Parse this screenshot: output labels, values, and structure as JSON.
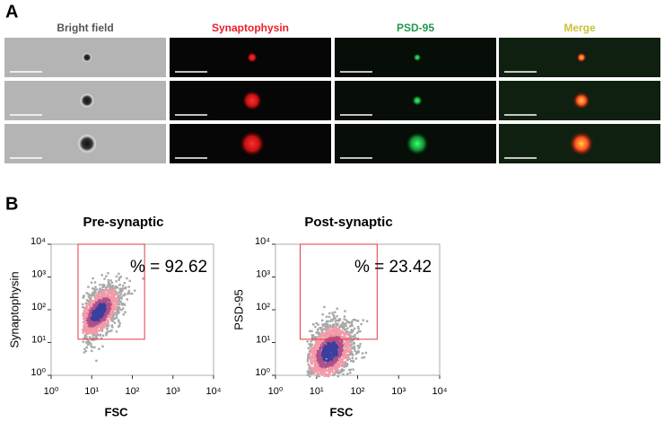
{
  "panel_a": {
    "label": "A",
    "columns": [
      {
        "text": "Bright field",
        "color": "#555555"
      },
      {
        "text": "Synaptophysin",
        "color": "#e8202a"
      },
      {
        "text": "PSD-95",
        "color": "#1e9a4a"
      },
      {
        "text": "Merge",
        "color": "#c9c23a"
      }
    ]
  },
  "panel_b": {
    "label": "B"
  },
  "chart_data": [
    {
      "type": "density",
      "title": "Pre-synaptic",
      "x_label": "FSC",
      "y_label": "Synaptophysin",
      "log_scale": true,
      "xlim": [
        1,
        10000
      ],
      "ylim": [
        1,
        10000
      ],
      "xticks": [
        {
          "value": 1,
          "label": "10⁰"
        },
        {
          "value": 10,
          "label": "10¹"
        },
        {
          "value": 100,
          "label": "10²"
        },
        {
          "value": 1000,
          "label": "10³"
        },
        {
          "value": 10000,
          "label": "10⁴"
        }
      ],
      "yticks": [
        {
          "value": 1,
          "label": "10⁰"
        },
        {
          "value": 10,
          "label": "10¹"
        },
        {
          "value": 100,
          "label": "10²"
        },
        {
          "value": 1000,
          "label": "10³"
        },
        {
          "value": 10000,
          "label": "10⁴"
        }
      ],
      "gate": {
        "x": [
          4.6,
          200
        ],
        "y": [
          12.6,
          10000
        ],
        "color": "#e03a3a"
      },
      "annotation": "% = 92.62"
    },
    {
      "type": "density",
      "title": "Post-synaptic",
      "x_label": "FSC",
      "y_label": "PSD-95",
      "log_scale": true,
      "xlim": [
        1,
        10000
      ],
      "ylim": [
        1,
        10000
      ],
      "xticks": [
        {
          "value": 1,
          "label": "10⁰"
        },
        {
          "value": 10,
          "label": "10¹"
        },
        {
          "value": 100,
          "label": "10²"
        },
        {
          "value": 1000,
          "label": "10³"
        },
        {
          "value": 10000,
          "label": "10⁴"
        }
      ],
      "yticks": [
        {
          "value": 1,
          "label": "10⁰"
        },
        {
          "value": 10,
          "label": "10¹"
        },
        {
          "value": 100,
          "label": "10²"
        },
        {
          "value": 1000,
          "label": "10³"
        },
        {
          "value": 10000,
          "label": "10⁴"
        }
      ],
      "gate": {
        "x": [
          4,
          300
        ],
        "y": [
          12.6,
          10000
        ],
        "color": "#e03a3a"
      },
      "annotation": "% = 23.42"
    }
  ]
}
